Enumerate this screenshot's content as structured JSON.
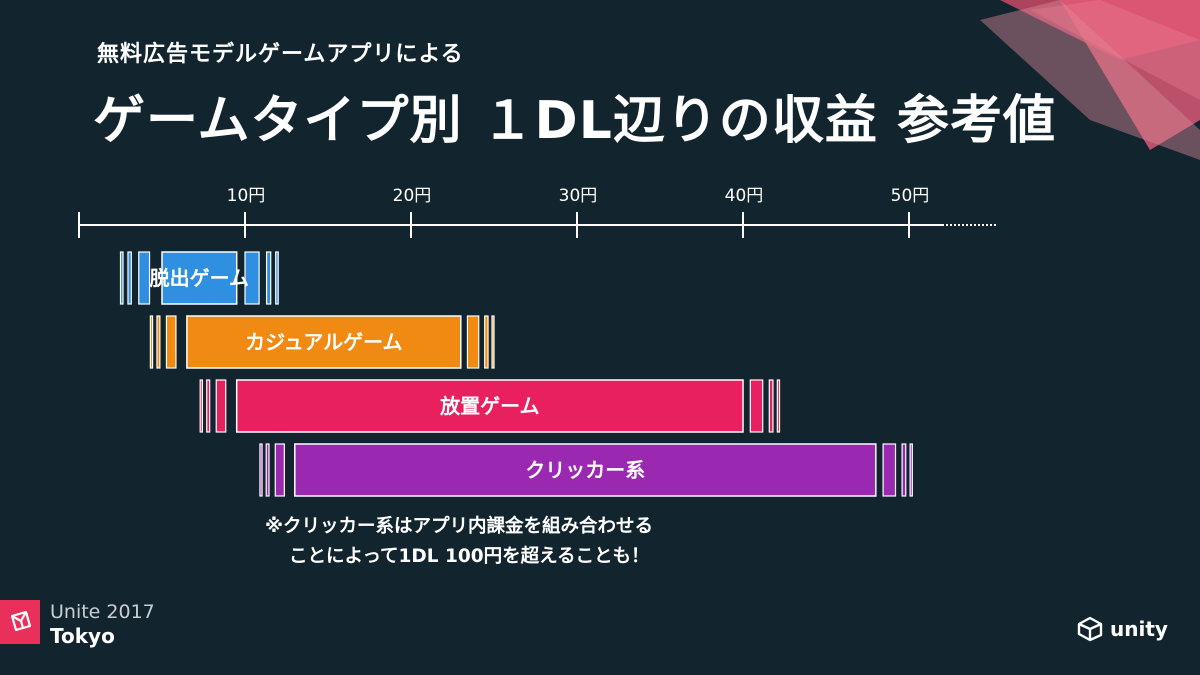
{
  "header": {
    "subtitle": "無料広告モデルゲームアプリによる",
    "title": "ゲームタイプ別 １DL辺りの収益 参考値"
  },
  "chart_data": {
    "type": "bar",
    "orientation": "horizontal-range",
    "unit": "円",
    "x_ticks": [
      "10円",
      "20円",
      "30円",
      "40円",
      "50円"
    ],
    "x_tick_values": [
      10,
      20,
      30,
      40,
      50
    ],
    "xlim": [
      0,
      55
    ],
    "series": [
      {
        "name": "脱出ゲーム",
        "range": [
          5,
          9.5
        ],
        "faded_range": [
          2.5,
          12
        ],
        "color": "#2f8fe0"
      },
      {
        "name": "カジュアルゲーム",
        "range": [
          6.5,
          23
        ],
        "faded_range": [
          4.3,
          25
        ],
        "color": "#f08a12"
      },
      {
        "name": "放置ゲーム",
        "range": [
          9.5,
          40
        ],
        "faded_range": [
          7.3,
          42.2
        ],
        "color": "#e8205f"
      },
      {
        "name": "クリッカー系",
        "range": [
          13,
          48
        ],
        "faded_range": [
          10.9,
          50.2
        ],
        "color": "#9a28b0"
      }
    ]
  },
  "note": {
    "line1": "※クリッカー系はアプリ内課金を組み合わせる",
    "line2": "ことによって1DL 100円を超えることも！"
  },
  "footer": {
    "event_name": "Unite 2017",
    "event_city": "Tokyo",
    "brand": "unity"
  }
}
